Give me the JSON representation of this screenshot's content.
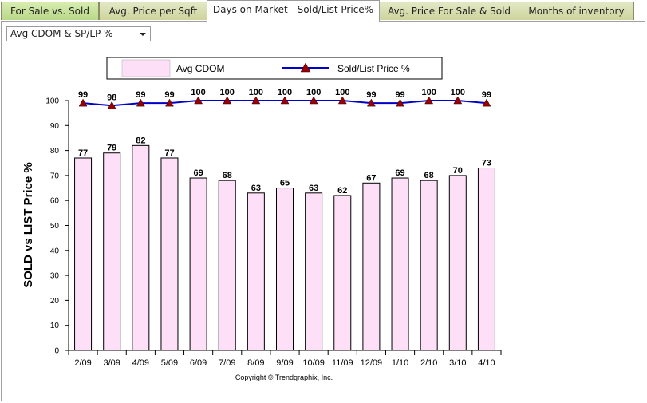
{
  "tabs": [
    {
      "label": "For Sale vs. Sold"
    },
    {
      "label": "Avg. Price per Sqft"
    },
    {
      "label": "Days on Market - Sold/List Price%"
    },
    {
      "label": "Avg. Price For Sale & Sold"
    },
    {
      "label": "Months of inventory"
    }
  ],
  "dropdown": {
    "selected": "Avg CDOM & SP/LP %"
  },
  "chart_data": {
    "type": "bar",
    "categories": [
      "2/09",
      "3/09",
      "4/09",
      "5/09",
      "6/09",
      "7/09",
      "8/09",
      "9/09",
      "10/09",
      "11/09",
      "12/09",
      "1/10",
      "2/10",
      "3/10",
      "4/10"
    ],
    "series": [
      {
        "name": "Avg CDOM",
        "type": "bar",
        "values": [
          77,
          79,
          82,
          77,
          69,
          68,
          63,
          65,
          63,
          62,
          67,
          69,
          68,
          70,
          73
        ]
      },
      {
        "name": "Sold/List Price %",
        "type": "line",
        "values": [
          99,
          98,
          99,
          99,
          100,
          100,
          100,
          100,
          100,
          100,
          99,
          99,
          100,
          100,
          99
        ]
      }
    ],
    "ylabel": "SOLD vs LIST Price %",
    "ylim": [
      0,
      100
    ],
    "yticks": [
      0,
      10,
      20,
      30,
      40,
      50,
      60,
      70,
      80,
      90,
      100
    ],
    "legend": "top",
    "grid": false,
    "colors": {
      "bar_fill": "#fde0f8",
      "bar_stroke": "#000000",
      "line": "#0000cc",
      "marker": "#990000"
    },
    "copyright": "Copyright © Trendgraphix, Inc."
  }
}
